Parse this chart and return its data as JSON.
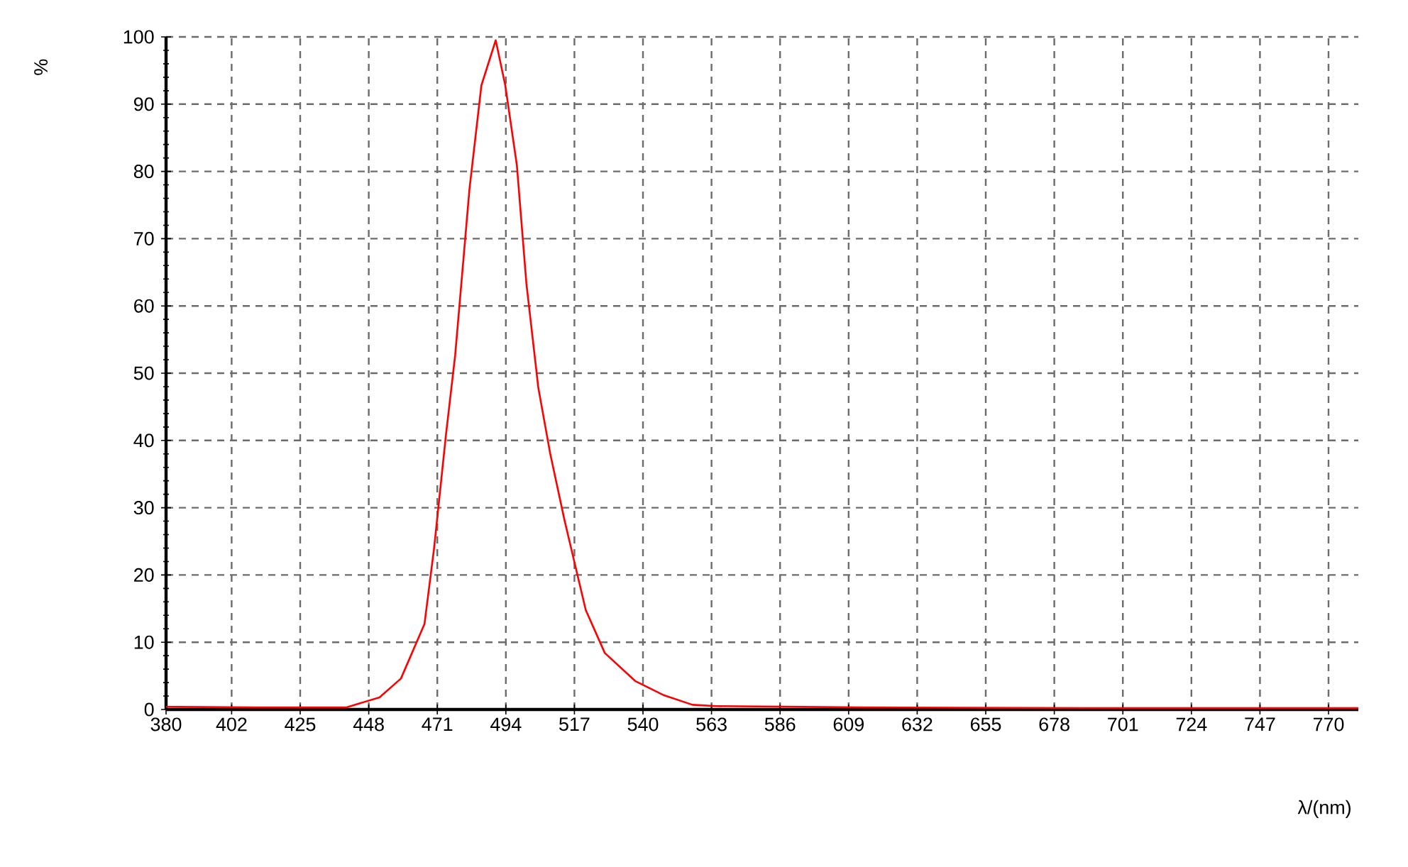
{
  "chart_data": {
    "type": "line",
    "xlabel": "λ/(nm)",
    "ylabel": "%",
    "color": "#ff0000",
    "grid": true,
    "x": [
      380,
      410,
      440.4,
      451.6,
      458.8,
      466.7,
      469.9,
      473.9,
      477,
      481.8,
      485.8,
      490.6,
      493.8,
      497.7,
      500.9,
      504.9,
      508.9,
      513.7,
      520.8,
      527.2,
      537.5,
      547.1,
      556.6,
      564.5,
      613.9,
      700,
      780
    ],
    "values": [
      0.4,
      0.3,
      0.3,
      1.8,
      4.6,
      12.7,
      23.9,
      40.8,
      52.7,
      77.4,
      92.8,
      99.5,
      92.8,
      80.9,
      63.3,
      47.8,
      38,
      28.1,
      14.8,
      8.4,
      4.2,
      2.1,
      0.7,
      0.5,
      0.3,
      0.2,
      0.2
    ],
    "xlim": [
      380,
      780
    ],
    "ylim": [
      0,
      100
    ],
    "xticks": [
      380,
      402,
      425,
      448,
      471,
      494,
      517,
      540,
      563,
      586,
      609,
      632,
      655,
      678,
      701,
      724,
      747,
      770
    ],
    "yticks": [
      0,
      10,
      20,
      30,
      40,
      50,
      60,
      70,
      80,
      90,
      100
    ]
  }
}
